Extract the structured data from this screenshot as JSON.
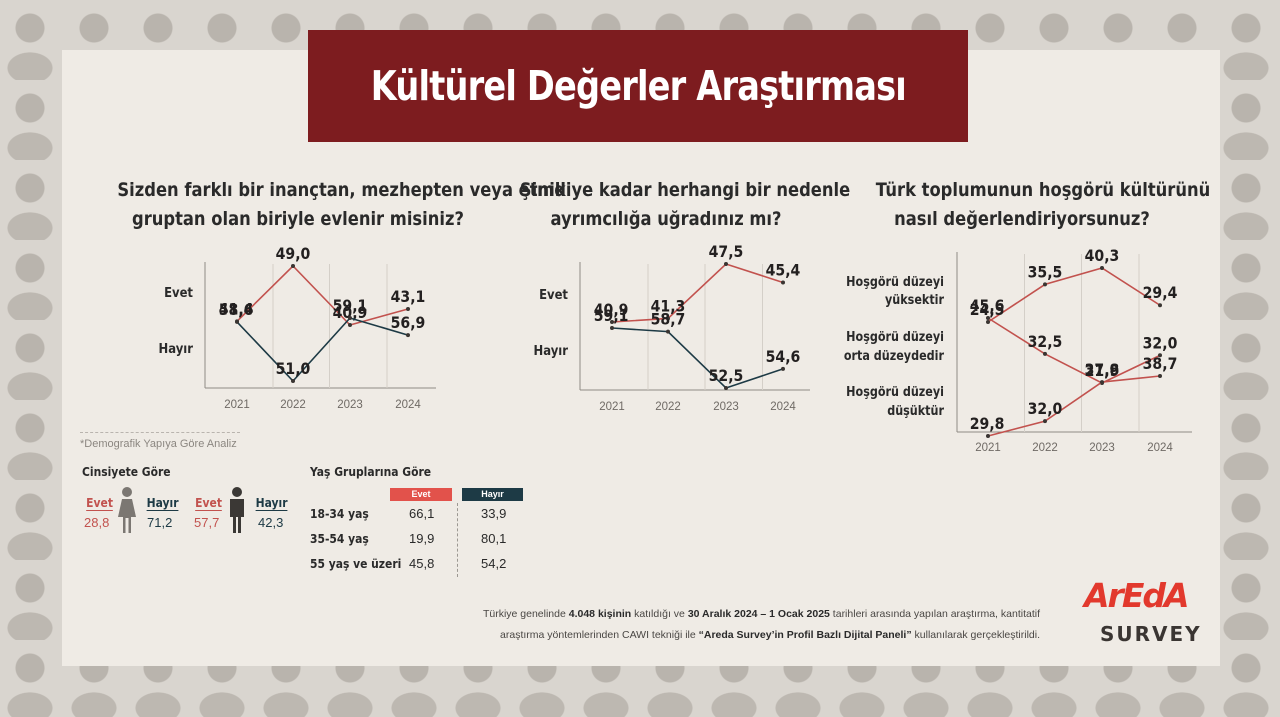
{
  "title": "Kültürel Değerler Araştırması",
  "colors": {
    "evet": "#c2524e",
    "hayir": "#1d3a45",
    "banner": "#7d1c1f",
    "axis": "#9c9892"
  },
  "chart_data": [
    {
      "type": "line",
      "title": "Sizden farklı bir inançtan, mezhepten veya etnik grubtan olan biriyle evlenir misiniz?",
      "title_lines": [
        "Sizden farklı bir inançtan, mezhepten veya etnik",
        "gruptan olan biriyle evlenir misiniz?"
      ],
      "x": [
        "2021",
        "2022",
        "2023",
        "2024"
      ],
      "series": [
        {
          "name": "Evet",
          "values": [
            41.4,
            49.0,
            40.9,
            43.1
          ],
          "labels": [
            "41,4",
            "49,0",
            "40,9",
            "43,1"
          ]
        },
        {
          "name": "Hayır",
          "values": [
            58.6,
            51.0,
            59.1,
            56.9
          ],
          "labels": [
            "58,6",
            "51,0",
            "59,1",
            "56,9"
          ]
        }
      ]
    },
    {
      "type": "line",
      "title_lines": [
        "Şimdiye kadar herhangi bir nedenle",
        "ayrımcılığa uğradınız mı?"
      ],
      "x": [
        "2021",
        "2022",
        "2023",
        "2024"
      ],
      "series": [
        {
          "name": "Evet",
          "values": [
            40.9,
            41.3,
            47.5,
            45.4
          ],
          "labels": [
            "40,9",
            "41,3",
            "47,5",
            "45,4"
          ]
        },
        {
          "name": "Hayır",
          "values": [
            59.1,
            58.7,
            52.5,
            54.6
          ],
          "labels": [
            "59,1",
            "58,7",
            "52,5",
            "54,6"
          ]
        }
      ]
    },
    {
      "type": "line",
      "title_lines": [
        "Türk toplumunun hoşgörü kültürünü",
        "nasıl değerlendiriyorsunuz?"
      ],
      "x": [
        "2021",
        "2022",
        "2023",
        "2024"
      ],
      "series": [
        {
          "name": "Hoşgörü düzeyi yüksektir",
          "name_lines": [
            "Hoşgörü düzeyi",
            "yüksektir"
          ],
          "values": [
            24.5,
            35.5,
            40.3,
            29.4
          ],
          "labels": [
            "24,5",
            "35,5",
            "40,3",
            "29,4"
          ]
        },
        {
          "name": "Hoşgörü düzeyi orta düzeydedir",
          "name_lines": [
            "Hoşgörü düzeyi",
            "orta düzeydedir"
          ],
          "values": [
            45.6,
            32.5,
            21.9,
            32.0
          ],
          "labels": [
            "45,6",
            "32,5",
            "21,9",
            "32,0"
          ]
        },
        {
          "name": "Hoşgörü düzeyi düşüktür",
          "name_lines": [
            "Hoşgörü düzeyi",
            "düşüktür"
          ],
          "values": [
            29.8,
            32.0,
            37.8,
            38.7
          ],
          "labels": [
            "29,8",
            "32,0",
            "37,8",
            "38,7"
          ]
        }
      ]
    }
  ],
  "demographic": {
    "note": "*Demografik Yapıya Göre Analiz",
    "gender": {
      "heading": "Cinsiyete Göre",
      "female": {
        "evet_label": "Evet",
        "evet": "28,8",
        "hayir_label": "Hayır",
        "hayir": "71,2"
      },
      "male": {
        "evet_label": "Evet",
        "evet": "57,7",
        "hayir_label": "Hayır",
        "hayir": "42,3"
      }
    },
    "age": {
      "heading": "Yaş Gruplarına Göre",
      "evet_header": "Evet",
      "hayir_header": "Hayır",
      "rows": [
        {
          "label": "18-34 yaş",
          "evet": "66,1",
          "hayir": "33,9"
        },
        {
          "label": "35-54 yaş",
          "evet": "19,9",
          "hayir": "80,1"
        },
        {
          "label": "55 yaş ve üzeri",
          "evet": "45,8",
          "hayir": "54,2"
        }
      ]
    }
  },
  "footer": {
    "line1_pre": "Türkiye genelinde ",
    "line1_b1": "4.048 kişinin",
    "line1_mid": " katıldığı ve ",
    "line1_b2": "30 Aralık 2024 – 1 Ocak 2025",
    "line1_post": " tarihleri arasında yapılan araştırma, kantitatif",
    "line2_pre": "araştırma yöntemlerinden CAWI tekniği ile ",
    "line2_b": "“Areda  Survey’in Profil Bazlı Dijital Paneli”",
    "line2_post": " kullanılarak gerçekleştirildi."
  },
  "logo": {
    "brand": "ArEdA",
    "sub": "SURVEY"
  }
}
